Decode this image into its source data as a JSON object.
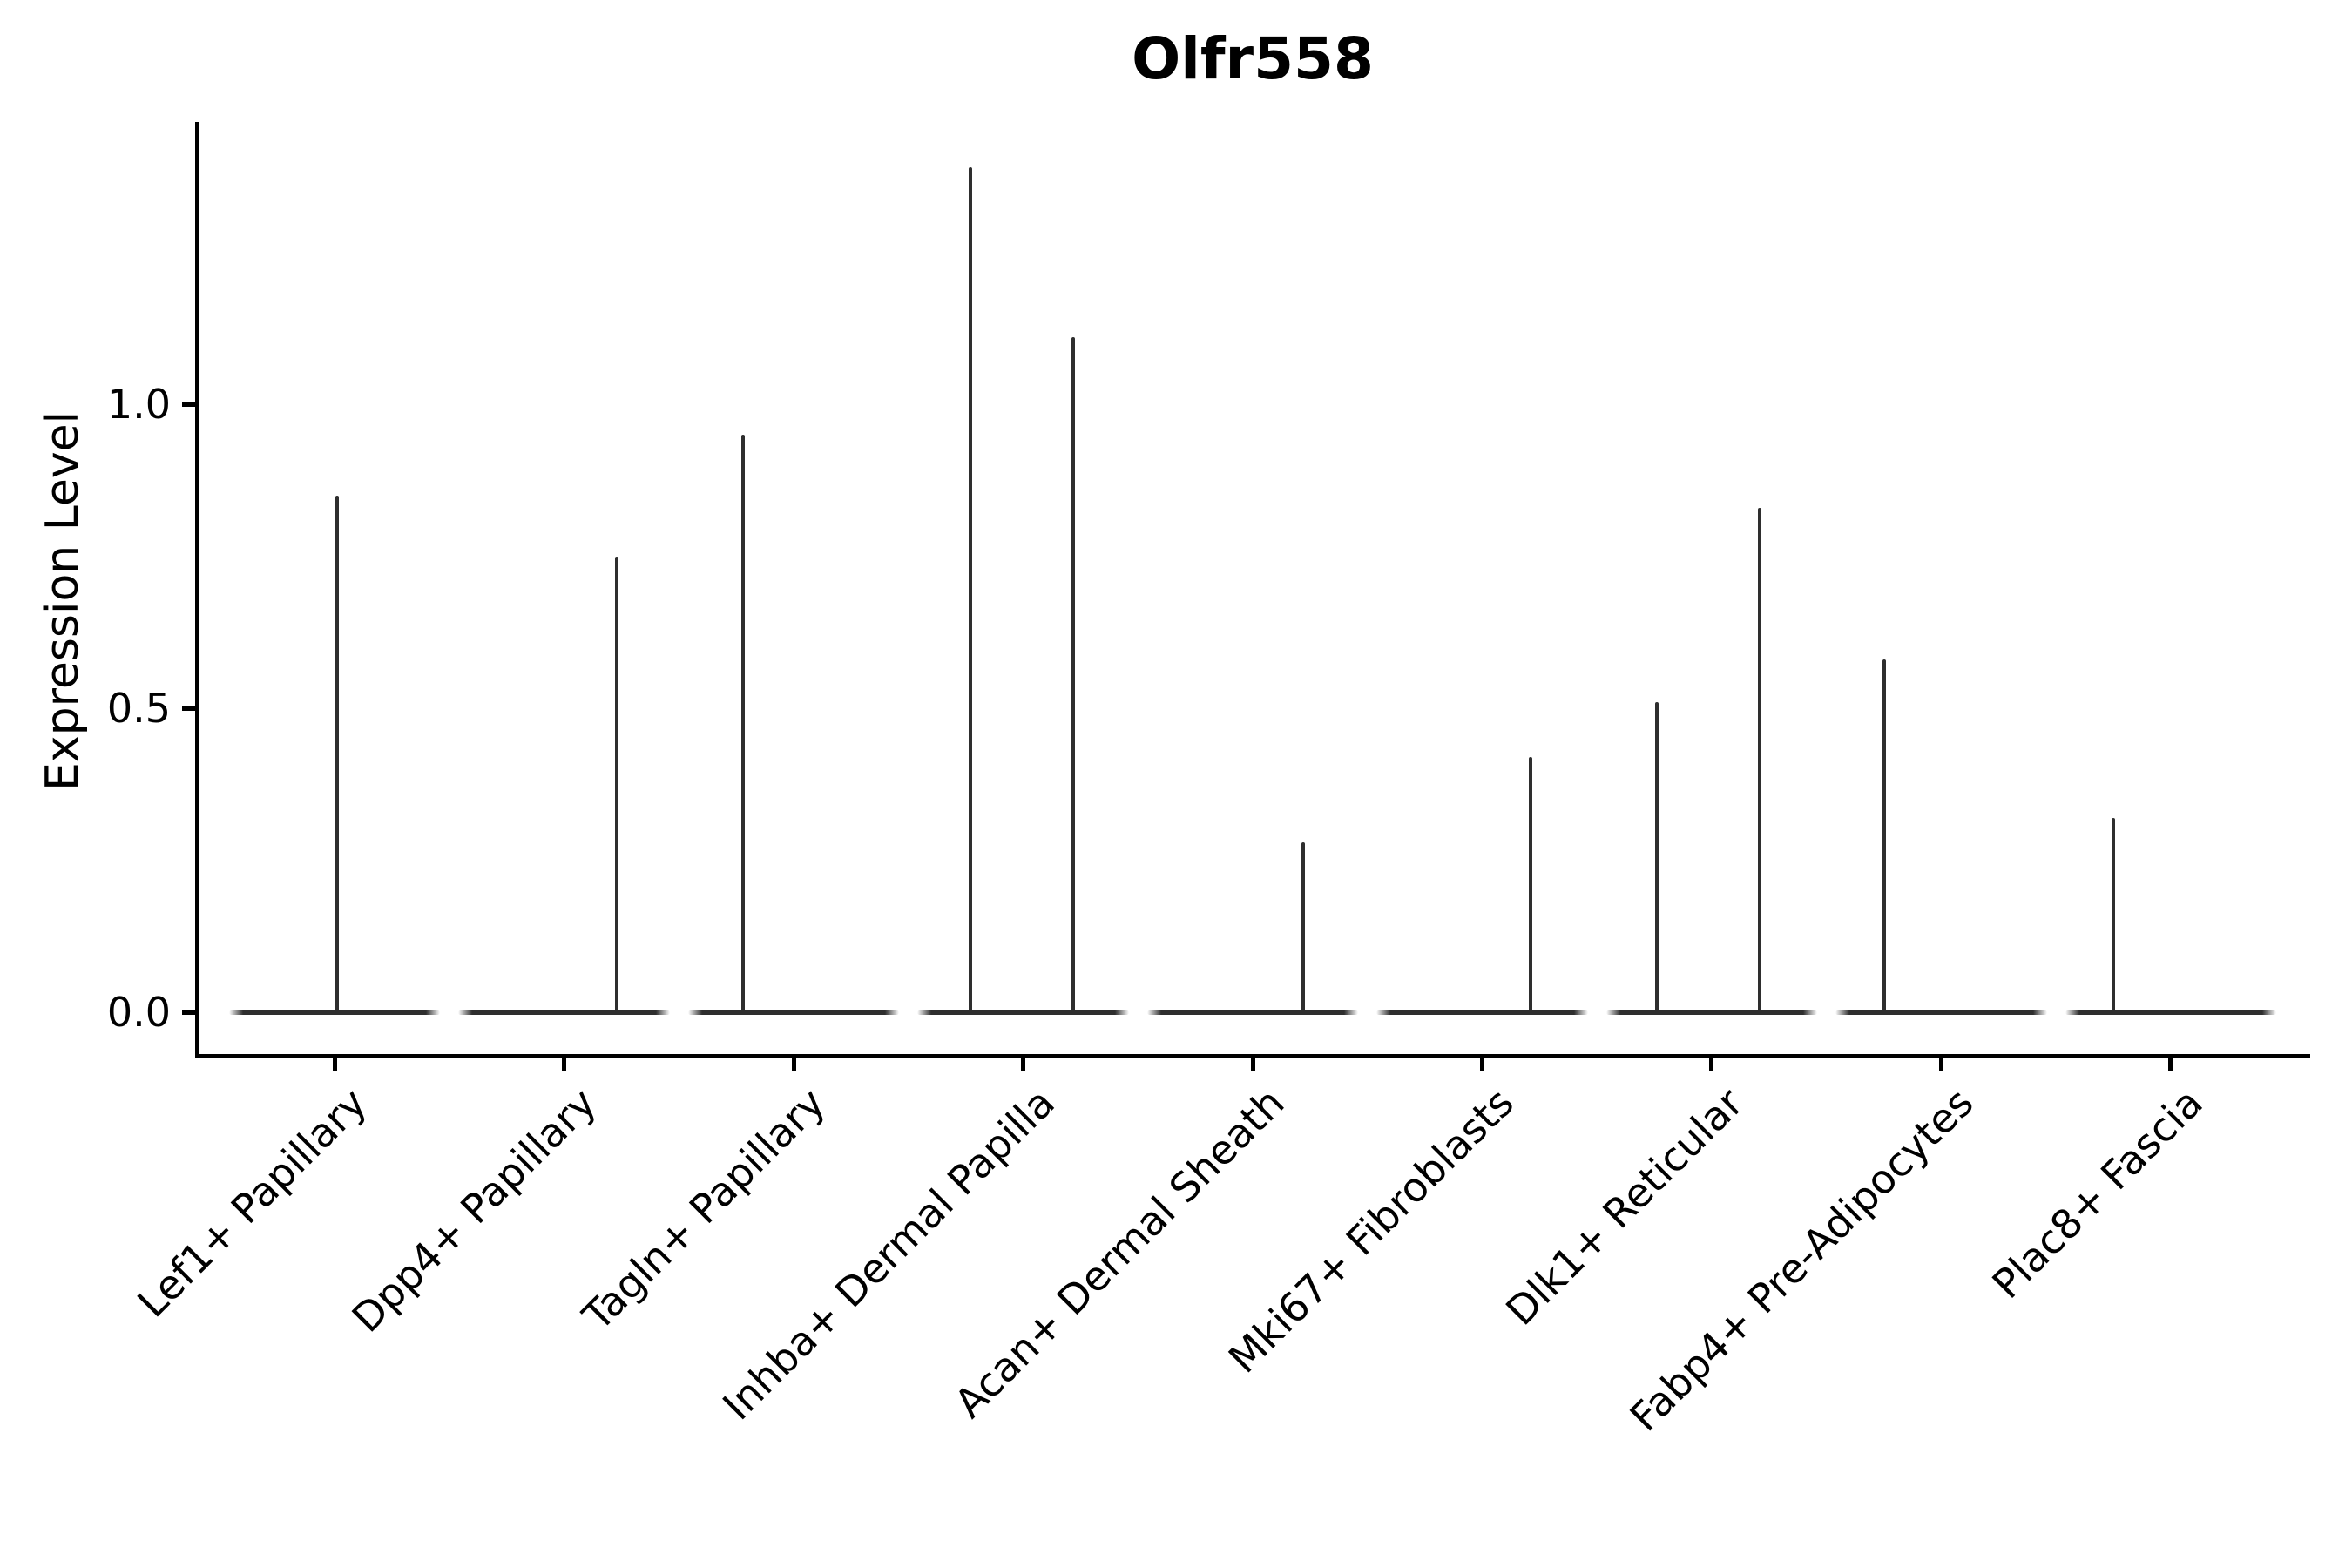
{
  "chart_data": {
    "type": "violin",
    "title": "Olfr558",
    "xlabel": "",
    "ylabel": "Expression Level",
    "y_ticks": [
      {
        "label": "0.0",
        "value": 0.0
      },
      {
        "label": "0.5",
        "value": 0.5
      },
      {
        "label": "1.0",
        "value": 1.0
      }
    ],
    "ylim": [
      -0.07,
      1.46
    ],
    "grid": false,
    "legend": "none",
    "line_color": "#2e2e2e",
    "axis_color": "#000000",
    "background": "#ffffff",
    "violin_width_fraction": 0.92,
    "categories": [
      "Lef1+ Papillary",
      "Dpp4+ Papillary",
      "Tagln+ Papillary",
      "Inhba+ Dermal Papilla",
      "Acan+ Dermal Sheath",
      "Mki67+ Fibroblasts",
      "Dlk1+ Reticular",
      "Fabp4+ Pre-Adipocytes",
      "Plac8+ Fascia"
    ],
    "violins": [
      {
        "category": "Lef1+ Papillary",
        "base_value": 0,
        "spikes": [
          {
            "value": 0.85,
            "offset": 0.01
          }
        ]
      },
      {
        "category": "Dpp4+ Papillary",
        "base_value": 0,
        "spikes": [
          {
            "value": 0.75,
            "offset": 0.23
          }
        ]
      },
      {
        "category": "Tagln+ Papillary",
        "base_value": 0,
        "spikes": [
          {
            "value": 0.95,
            "offset": -0.22
          }
        ]
      },
      {
        "category": "Inhba+ Dermal Papilla",
        "base_value": 0,
        "spikes": [
          {
            "value": 1.39,
            "offset": -0.23
          },
          {
            "value": 1.11,
            "offset": 0.22
          }
        ]
      },
      {
        "category": "Acan+ Dermal Sheath",
        "base_value": 0,
        "spikes": [
          {
            "value": 0.28,
            "offset": 0.22
          }
        ]
      },
      {
        "category": "Mki67+ Fibroblasts",
        "base_value": 0,
        "spikes": [
          {
            "value": 0.42,
            "offset": 0.21
          }
        ]
      },
      {
        "category": "Dlk1+ Reticular",
        "base_value": 0,
        "spikes": [
          {
            "value": 0.51,
            "offset": -0.24
          },
          {
            "value": 0.83,
            "offset": 0.21
          }
        ]
      },
      {
        "category": "Fabp4+ Pre-Adipocytes",
        "base_value": 0,
        "spikes": [
          {
            "value": 0.58,
            "offset": -0.25
          }
        ]
      },
      {
        "category": "Plac8+ Fascia",
        "base_value": 0,
        "spikes": [
          {
            "value": 0.32,
            "offset": -0.25
          }
        ]
      }
    ]
  }
}
